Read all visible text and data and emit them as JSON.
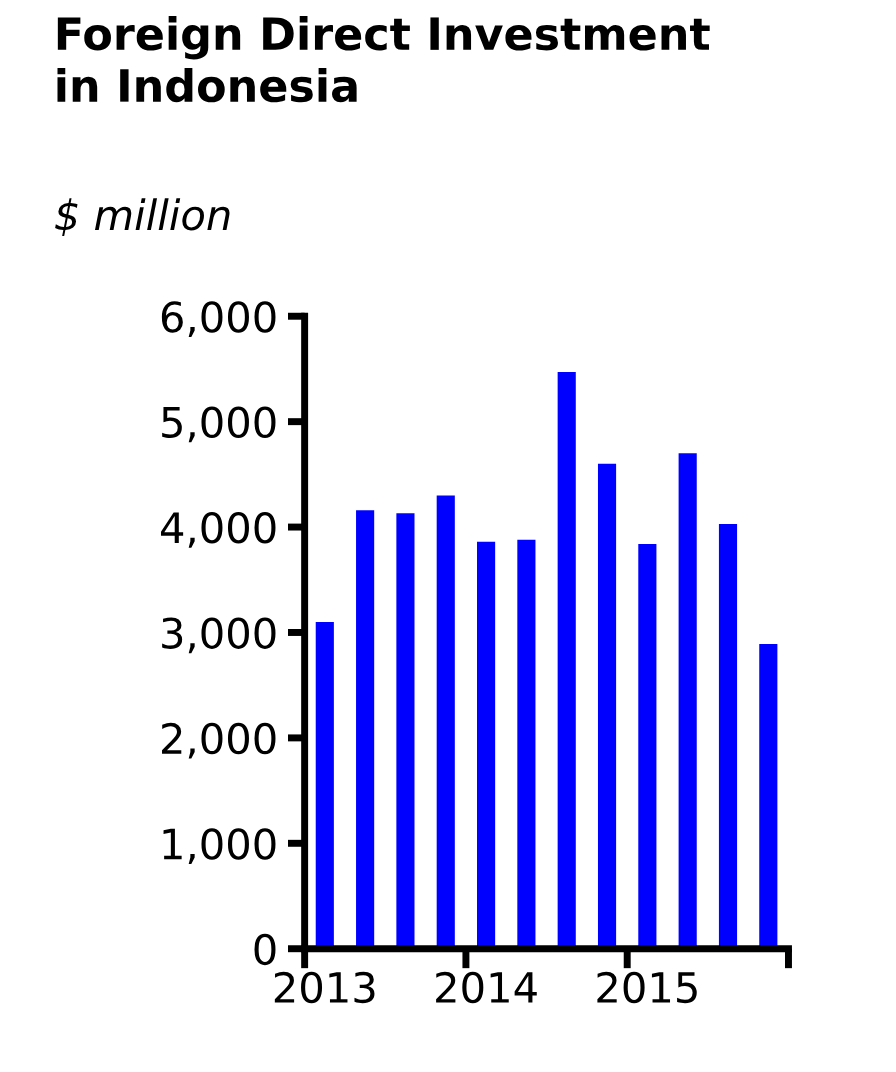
{
  "chart_data": {
    "type": "bar",
    "title": "Foreign Direct Investment\nin Indonesia",
    "subtitle": "$ million",
    "categories": [
      "2013",
      null,
      null,
      null,
      "2014",
      null,
      null,
      null,
      "2015",
      null,
      null,
      null
    ],
    "values": [
      3100,
      4160,
      4130,
      4300,
      3860,
      3880,
      5470,
      4600,
      3840,
      4700,
      4030,
      2890
    ],
    "color": "#0000ff",
    "ylim": [
      0,
      6000
    ],
    "yticks": [
      {
        "value": 0,
        "label": "0"
      },
      {
        "value": 1000,
        "label": "1,000"
      },
      {
        "value": 2000,
        "label": "2,000"
      },
      {
        "value": 3000,
        "label": "3,000"
      },
      {
        "value": 4000,
        "label": "4,000"
      },
      {
        "value": 5000,
        "label": "5,000"
      },
      {
        "value": 6000,
        "label": "6,000"
      }
    ],
    "grid": false
  }
}
